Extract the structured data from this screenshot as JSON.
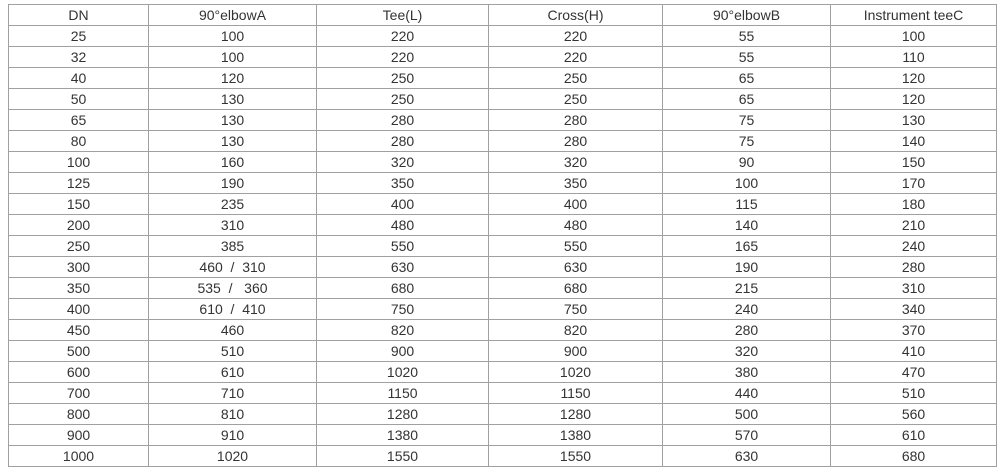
{
  "table": {
    "header": [
      "DN",
      "90°elbowA",
      "Tee(L)",
      "Cross(H)",
      "90°elbowB",
      "Instrument teeC"
    ],
    "rows": [
      [
        25,
        100,
        220,
        220,
        55,
        100
      ],
      [
        32,
        100,
        220,
        220,
        55,
        110
      ],
      [
        40,
        120,
        250,
        250,
        65,
        120
      ],
      [
        50,
        130,
        250,
        250,
        65,
        120
      ],
      [
        65,
        130,
        280,
        280,
        75,
        130
      ],
      [
        80,
        130,
        280,
        280,
        75,
        140
      ],
      [
        100,
        160,
        320,
        320,
        90,
        150
      ],
      [
        125,
        190,
        350,
        350,
        100,
        170
      ],
      [
        150,
        235,
        400,
        400,
        115,
        180
      ],
      [
        200,
        310,
        480,
        480,
        140,
        210
      ],
      [
        250,
        385,
        550,
        550,
        165,
        240
      ],
      [
        300,
        "460  /  310",
        630,
        630,
        190,
        280
      ],
      [
        350,
        "535  /   360",
        680,
        680,
        215,
        310
      ],
      [
        400,
        "610  /  410",
        750,
        750,
        240,
        340
      ],
      [
        450,
        460,
        820,
        820,
        280,
        370
      ],
      [
        500,
        510,
        900,
        900,
        320,
        410
      ],
      [
        600,
        610,
        1020,
        1020,
        380,
        470
      ],
      [
        700,
        710,
        1150,
        1150,
        440,
        510
      ],
      [
        800,
        810,
        1280,
        1280,
        500,
        560
      ],
      [
        900,
        910,
        1380,
        1380,
        570,
        610
      ],
      [
        1000,
        1020,
        1550,
        1550,
        630,
        680
      ]
    ]
  }
}
